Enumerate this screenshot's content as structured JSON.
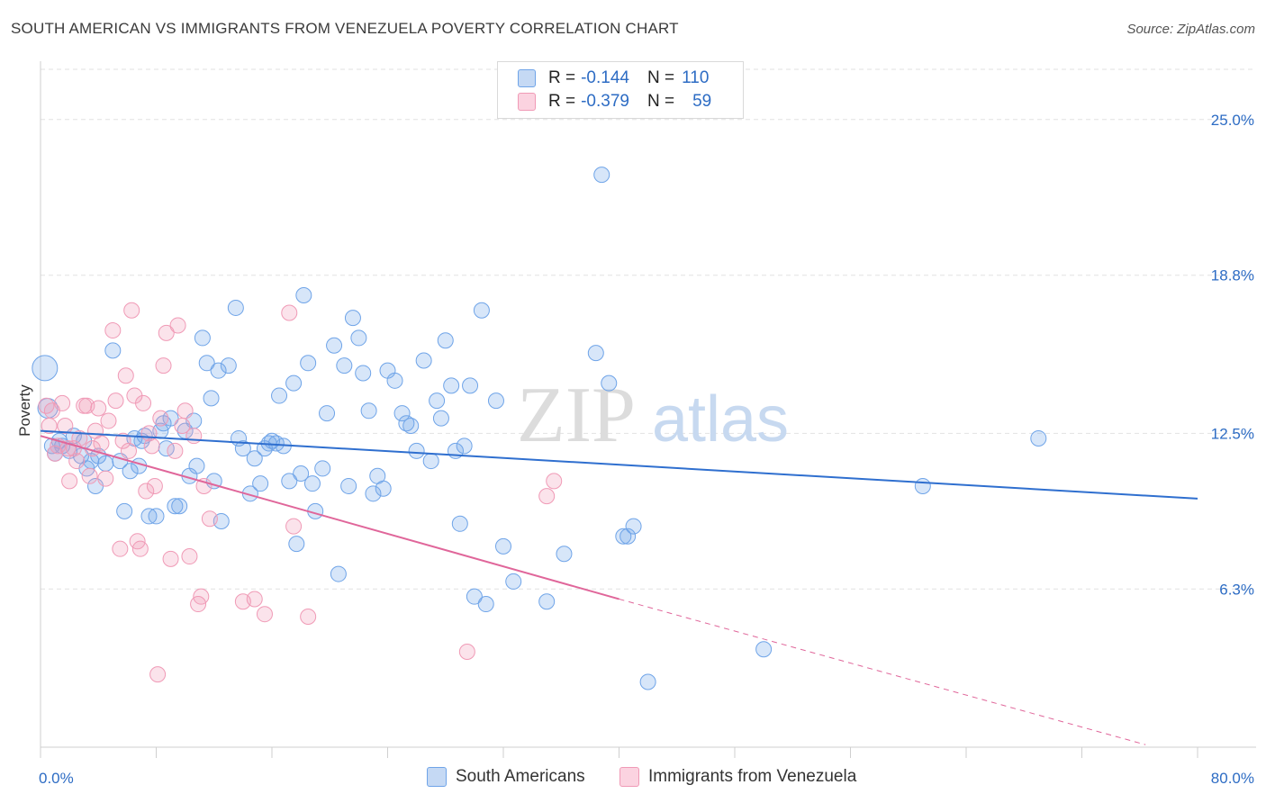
{
  "title": "SOUTH AMERICAN VS IMMIGRANTS FROM VENEZUELA POVERTY CORRELATION CHART",
  "source": "Source: ZipAtlas.com",
  "watermark": {
    "zip": "ZIP",
    "atlas": "atlas"
  },
  "legend": {
    "r_label": "R =",
    "n_label": "N =",
    "entries": [
      {
        "r": "-0.144",
        "n": "110",
        "color": "#6fa4e8"
      },
      {
        "r": "-0.379",
        "n": "59",
        "color": "#f09ab6"
      }
    ]
  },
  "chart_data": {
    "type": "scatter",
    "title": "SOUTH AMERICAN VS IMMIGRANTS FROM VENEZUELA POVERTY CORRELATION CHART",
    "xlabel": "",
    "ylabel": "Poverty",
    "xlim": [
      0,
      80
    ],
    "ylim": [
      0,
      27
    ],
    "x_tick_labels": [
      "0.0%",
      "80.0%"
    ],
    "y_ticks": [
      6.3,
      12.5,
      18.8,
      25.0
    ],
    "y_tick_labels": [
      "6.3%",
      "12.5%",
      "18.8%",
      "25.0%"
    ],
    "grid": true,
    "legend_position": "top-center",
    "series": [
      {
        "name": "South Americans",
        "color": "#6fa4e8",
        "trend": {
          "x": [
            0,
            80
          ],
          "y": [
            12.6,
            9.9
          ],
          "dashed_to": null
        },
        "points": [
          [
            0.3,
            15.1
          ],
          [
            0.5,
            13.5
          ],
          [
            0.8,
            12.0
          ],
          [
            1.0,
            11.7
          ],
          [
            1.3,
            12.2
          ],
          [
            1.5,
            12.0
          ],
          [
            2.0,
            11.8
          ],
          [
            2.3,
            12.4
          ],
          [
            2.8,
            11.6
          ],
          [
            3.0,
            12.2
          ],
          [
            3.2,
            11.1
          ],
          [
            3.5,
            11.4
          ],
          [
            3.8,
            10.4
          ],
          [
            4.0,
            11.6
          ],
          [
            4.5,
            11.3
          ],
          [
            5.0,
            15.8
          ],
          [
            5.5,
            11.4
          ],
          [
            5.8,
            9.4
          ],
          [
            6.2,
            11.0
          ],
          [
            6.5,
            12.3
          ],
          [
            6.8,
            11.2
          ],
          [
            7.0,
            12.2
          ],
          [
            7.2,
            12.4
          ],
          [
            7.5,
            9.2
          ],
          [
            8.0,
            9.2
          ],
          [
            8.3,
            12.6
          ],
          [
            8.5,
            12.9
          ],
          [
            8.7,
            11.9
          ],
          [
            9.0,
            13.1
          ],
          [
            9.3,
            9.6
          ],
          [
            9.6,
            9.6
          ],
          [
            10.0,
            12.6
          ],
          [
            10.3,
            10.8
          ],
          [
            10.6,
            13.0
          ],
          [
            10.8,
            11.2
          ],
          [
            11.2,
            16.3
          ],
          [
            11.5,
            15.3
          ],
          [
            11.8,
            13.9
          ],
          [
            12.0,
            10.6
          ],
          [
            12.3,
            15.0
          ],
          [
            12.5,
            9.0
          ],
          [
            13.0,
            15.2
          ],
          [
            13.5,
            17.5
          ],
          [
            13.7,
            12.3
          ],
          [
            14.0,
            11.9
          ],
          [
            14.5,
            10.1
          ],
          [
            14.8,
            11.5
          ],
          [
            15.2,
            10.5
          ],
          [
            15.5,
            11.9
          ],
          [
            15.8,
            12.1
          ],
          [
            16.0,
            12.2
          ],
          [
            16.3,
            12.1
          ],
          [
            16.5,
            14.0
          ],
          [
            16.8,
            12.0
          ],
          [
            17.2,
            10.6
          ],
          [
            17.5,
            14.5
          ],
          [
            17.7,
            8.1
          ],
          [
            18.0,
            10.9
          ],
          [
            18.2,
            18.0
          ],
          [
            18.5,
            15.3
          ],
          [
            18.8,
            10.5
          ],
          [
            19.0,
            9.4
          ],
          [
            19.5,
            11.1
          ],
          [
            19.8,
            13.3
          ],
          [
            20.3,
            16.0
          ],
          [
            20.6,
            6.9
          ],
          [
            21.0,
            15.2
          ],
          [
            21.3,
            10.4
          ],
          [
            21.6,
            17.1
          ],
          [
            22.0,
            16.3
          ],
          [
            22.3,
            14.9
          ],
          [
            22.7,
            13.4
          ],
          [
            23.0,
            10.1
          ],
          [
            23.3,
            10.8
          ],
          [
            23.7,
            10.3
          ],
          [
            24.0,
            15.0
          ],
          [
            24.5,
            14.6
          ],
          [
            25.0,
            13.3
          ],
          [
            25.3,
            12.9
          ],
          [
            25.6,
            12.8
          ],
          [
            26.0,
            11.8
          ],
          [
            26.5,
            15.4
          ],
          [
            27.0,
            11.4
          ],
          [
            27.4,
            13.8
          ],
          [
            27.7,
            13.1
          ],
          [
            28.0,
            16.2
          ],
          [
            28.4,
            14.4
          ],
          [
            28.7,
            11.8
          ],
          [
            29.0,
            8.9
          ],
          [
            29.3,
            12.0
          ],
          [
            29.7,
            14.4
          ],
          [
            30.0,
            6.0
          ],
          [
            30.5,
            17.4
          ],
          [
            30.8,
            5.7
          ],
          [
            31.5,
            13.8
          ],
          [
            32.0,
            8.0
          ],
          [
            32.7,
            6.6
          ],
          [
            35.0,
            5.8
          ],
          [
            36.2,
            7.7
          ],
          [
            38.4,
            15.7
          ],
          [
            38.8,
            22.8
          ],
          [
            39.3,
            14.5
          ],
          [
            40.3,
            8.4
          ],
          [
            40.6,
            8.4
          ],
          [
            41.0,
            8.8
          ],
          [
            42.0,
            2.6
          ],
          [
            50.0,
            3.9
          ],
          [
            61.0,
            10.4
          ],
          [
            69.0,
            12.3
          ]
        ]
      },
      {
        "name": "Immigrants from Venezuela",
        "color": "#f09ab6",
        "trend": {
          "x": [
            0,
            40
          ],
          "y": [
            12.4,
            5.9
          ],
          "dashed_to": [
            80,
            -0.6
          ]
        },
        "points": [
          [
            0.4,
            13.6
          ],
          [
            0.6,
            12.8
          ],
          [
            0.8,
            13.4
          ],
          [
            1.0,
            11.7
          ],
          [
            1.2,
            12.0
          ],
          [
            1.5,
            13.7
          ],
          [
            1.7,
            12.8
          ],
          [
            1.9,
            11.9
          ],
          [
            2.0,
            10.6
          ],
          [
            2.3,
            11.9
          ],
          [
            2.5,
            11.4
          ],
          [
            2.7,
            12.3
          ],
          [
            3.0,
            13.6
          ],
          [
            3.2,
            13.6
          ],
          [
            3.4,
            10.8
          ],
          [
            3.6,
            11.9
          ],
          [
            3.8,
            12.6
          ],
          [
            4.0,
            13.5
          ],
          [
            4.2,
            12.1
          ],
          [
            4.5,
            10.7
          ],
          [
            4.7,
            13.0
          ],
          [
            5.0,
            16.6
          ],
          [
            5.2,
            13.8
          ],
          [
            5.5,
            7.9
          ],
          [
            5.7,
            12.2
          ],
          [
            5.9,
            14.8
          ],
          [
            6.1,
            11.8
          ],
          [
            6.3,
            17.4
          ],
          [
            6.5,
            14.0
          ],
          [
            6.7,
            8.2
          ],
          [
            6.9,
            7.9
          ],
          [
            7.1,
            13.7
          ],
          [
            7.3,
            10.2
          ],
          [
            7.5,
            12.5
          ],
          [
            7.7,
            12.0
          ],
          [
            7.9,
            10.4
          ],
          [
            8.1,
            2.9
          ],
          [
            8.3,
            13.1
          ],
          [
            8.5,
            15.2
          ],
          [
            8.7,
            16.5
          ],
          [
            9.0,
            7.5
          ],
          [
            9.3,
            11.8
          ],
          [
            9.5,
            16.8
          ],
          [
            9.8,
            12.8
          ],
          [
            10.0,
            13.4
          ],
          [
            10.3,
            7.6
          ],
          [
            10.6,
            12.4
          ],
          [
            10.9,
            5.7
          ],
          [
            11.1,
            6.0
          ],
          [
            11.3,
            10.4
          ],
          [
            11.7,
            9.1
          ],
          [
            14.0,
            5.8
          ],
          [
            14.8,
            5.9
          ],
          [
            15.5,
            5.3
          ],
          [
            17.2,
            17.3
          ],
          [
            17.5,
            8.8
          ],
          [
            18.5,
            5.2
          ],
          [
            29.5,
            3.8
          ],
          [
            35.5,
            10.6
          ],
          [
            35.0,
            10.0
          ]
        ]
      }
    ]
  }
}
